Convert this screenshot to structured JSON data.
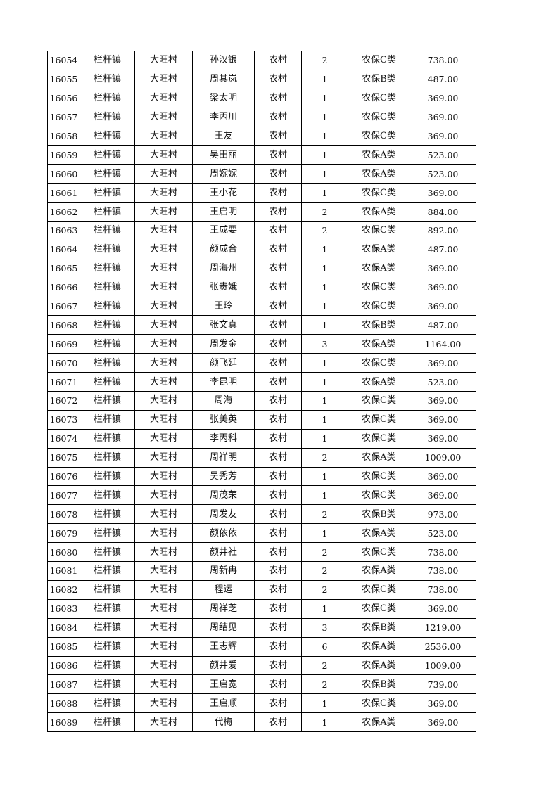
{
  "table": {
    "rows": [
      [
        "16054",
        "栏杆镇",
        "大旺村",
        "孙汉银",
        "农村",
        "2",
        "农保C类",
        "738.00"
      ],
      [
        "16055",
        "栏杆镇",
        "大旺村",
        "周其岚",
        "农村",
        "1",
        "农保B类",
        "487.00"
      ],
      [
        "16056",
        "栏杆镇",
        "大旺村",
        "梁太明",
        "农村",
        "1",
        "农保C类",
        "369.00"
      ],
      [
        "16057",
        "栏杆镇",
        "大旺村",
        "李丙川",
        "农村",
        "1",
        "农保C类",
        "369.00"
      ],
      [
        "16058",
        "栏杆镇",
        "大旺村",
        "王友",
        "农村",
        "1",
        "农保C类",
        "369.00"
      ],
      [
        "16059",
        "栏杆镇",
        "大旺村",
        "吴田丽",
        "农村",
        "1",
        "农保A类",
        "523.00"
      ],
      [
        "16060",
        "栏杆镇",
        "大旺村",
        "周婉婉",
        "农村",
        "1",
        "农保A类",
        "523.00"
      ],
      [
        "16061",
        "栏杆镇",
        "大旺村",
        "王小花",
        "农村",
        "1",
        "农保C类",
        "369.00"
      ],
      [
        "16062",
        "栏杆镇",
        "大旺村",
        "王启明",
        "农村",
        "2",
        "农保A类",
        "884.00"
      ],
      [
        "16063",
        "栏杆镇",
        "大旺村",
        "王成要",
        "农村",
        "2",
        "农保C类",
        "892.00"
      ],
      [
        "16064",
        "栏杆镇",
        "大旺村",
        "颜成合",
        "农村",
        "1",
        "农保A类",
        "487.00"
      ],
      [
        "16065",
        "栏杆镇",
        "大旺村",
        "周海州",
        "农村",
        "1",
        "农保A类",
        "369.00"
      ],
      [
        "16066",
        "栏杆镇",
        "大旺村",
        "张贵娥",
        "农村",
        "1",
        "农保C类",
        "369.00"
      ],
      [
        "16067",
        "栏杆镇",
        "大旺村",
        "王玲",
        "农村",
        "1",
        "农保C类",
        "369.00"
      ],
      [
        "16068",
        "栏杆镇",
        "大旺村",
        "张文真",
        "农村",
        "1",
        "农保B类",
        "487.00"
      ],
      [
        "16069",
        "栏杆镇",
        "大旺村",
        "周发金",
        "农村",
        "3",
        "农保A类",
        "1164.00"
      ],
      [
        "16070",
        "栏杆镇",
        "大旺村",
        "颜飞廷",
        "农村",
        "1",
        "农保C类",
        "369.00"
      ],
      [
        "16071",
        "栏杆镇",
        "大旺村",
        "李昆明",
        "农村",
        "1",
        "农保A类",
        "523.00"
      ],
      [
        "16072",
        "栏杆镇",
        "大旺村",
        "周海",
        "农村",
        "1",
        "农保C类",
        "369.00"
      ],
      [
        "16073",
        "栏杆镇",
        "大旺村",
        "张美英",
        "农村",
        "1",
        "农保C类",
        "369.00"
      ],
      [
        "16074",
        "栏杆镇",
        "大旺村",
        "李丙科",
        "农村",
        "1",
        "农保C类",
        "369.00"
      ],
      [
        "16075",
        "栏杆镇",
        "大旺村",
        "周祥明",
        "农村",
        "2",
        "农保A类",
        "1009.00"
      ],
      [
        "16076",
        "栏杆镇",
        "大旺村",
        "吴秀芳",
        "农村",
        "1",
        "农保C类",
        "369.00"
      ],
      [
        "16077",
        "栏杆镇",
        "大旺村",
        "周茂荣",
        "农村",
        "1",
        "农保C类",
        "369.00"
      ],
      [
        "16078",
        "栏杆镇",
        "大旺村",
        "周发友",
        "农村",
        "2",
        "农保B类",
        "973.00"
      ],
      [
        "16079",
        "栏杆镇",
        "大旺村",
        "颜依依",
        "农村",
        "1",
        "农保A类",
        "523.00"
      ],
      [
        "16080",
        "栏杆镇",
        "大旺村",
        "颜井社",
        "农村",
        "2",
        "农保C类",
        "738.00"
      ],
      [
        "16081",
        "栏杆镇",
        "大旺村",
        "周新冉",
        "农村",
        "2",
        "农保A类",
        "738.00"
      ],
      [
        "16082",
        "栏杆镇",
        "大旺村",
        "程运",
        "农村",
        "2",
        "农保C类",
        "738.00"
      ],
      [
        "16083",
        "栏杆镇",
        "大旺村",
        "周祥芝",
        "农村",
        "1",
        "农保C类",
        "369.00"
      ],
      [
        "16084",
        "栏杆镇",
        "大旺村",
        "周结见",
        "农村",
        "3",
        "农保B类",
        "1219.00"
      ],
      [
        "16085",
        "栏杆镇",
        "大旺村",
        "王志辉",
        "农村",
        "6",
        "农保A类",
        "2536.00"
      ],
      [
        "16086",
        "栏杆镇",
        "大旺村",
        "颜井爱",
        "农村",
        "2",
        "农保A类",
        "1009.00"
      ],
      [
        "16087",
        "栏杆镇",
        "大旺村",
        "王启宽",
        "农村",
        "2",
        "农保B类",
        "739.00"
      ],
      [
        "16088",
        "栏杆镇",
        "大旺村",
        "王启顺",
        "农村",
        "1",
        "农保C类",
        "369.00"
      ],
      [
        "16089",
        "栏杆镇",
        "大旺村",
        "代梅",
        "农村",
        "1",
        "农保A类",
        "369.00"
      ]
    ]
  }
}
